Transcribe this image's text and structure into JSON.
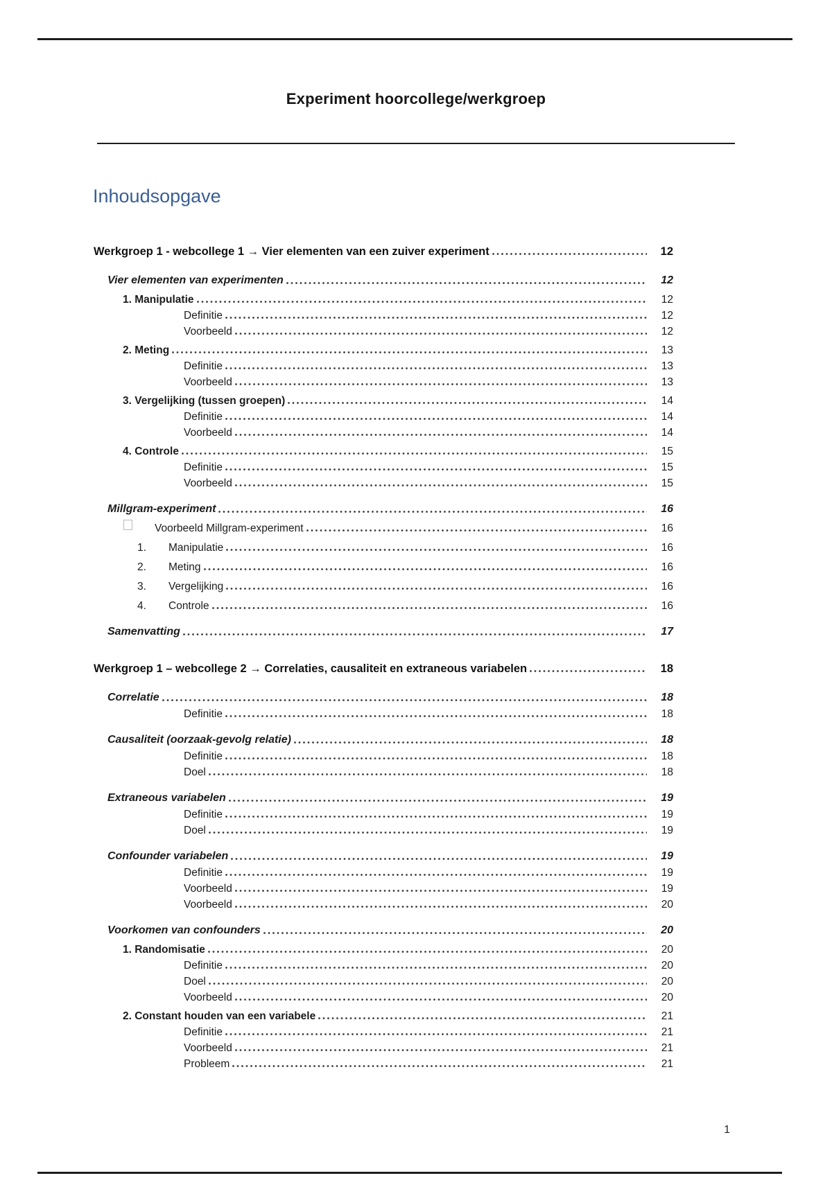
{
  "page": {
    "title": "Experiment hoorcollege/werkgroep",
    "toc_heading": "Inhoudsopgave",
    "footer_page_number": "1",
    "colors": {
      "heading_blue": "#3A5F94",
      "text": "#1b1b1b",
      "rule": "#1d1d1d"
    }
  },
  "toc": {
    "entries": [
      {
        "level": "h1",
        "label": "Werkgroep 1 - webcollege 1 → Vier elementen van een zuiver experiment",
        "page": "12"
      },
      {
        "level": "h2",
        "label": "Vier elementen van experimenten",
        "page": "12"
      },
      {
        "level": "h3",
        "label": "1. Manipulatie",
        "page": "12"
      },
      {
        "level": "h4",
        "label": "Definitie",
        "page": "12"
      },
      {
        "level": "h4",
        "label": "Voorbeeld",
        "page": "12"
      },
      {
        "level": "h3",
        "label": "2. Meting",
        "page": "13"
      },
      {
        "level": "h4",
        "label": "Definitie",
        "page": "13"
      },
      {
        "level": "h4",
        "label": "Voorbeeld",
        "page": "13"
      },
      {
        "level": "h3",
        "label": "3. Vergelijking (tussen groepen)",
        "page": "14"
      },
      {
        "level": "h4",
        "label": "Definitie",
        "page": "14"
      },
      {
        "level": "h4",
        "label": "Voorbeeld",
        "page": "14"
      },
      {
        "level": "h3",
        "label": "4. Controle",
        "page": "15"
      },
      {
        "level": "h4",
        "label": "Definitie",
        "page": "15"
      },
      {
        "level": "h4",
        "label": "Voorbeeld",
        "page": "15"
      },
      {
        "level": "h2",
        "label": "Millgram-experiment",
        "page": "16"
      },
      {
        "level": "bullet",
        "label": "Voorbeeld Millgram-experiment",
        "page": "16"
      },
      {
        "level": "num",
        "num": "1.",
        "label": "Manipulatie",
        "page": "16"
      },
      {
        "level": "num",
        "num": "2.",
        "label": "Meting",
        "page": "16"
      },
      {
        "level": "num",
        "num": "3.",
        "label": "Vergelijking",
        "page": "16"
      },
      {
        "level": "num",
        "num": "4.",
        "label": "Controle",
        "page": "16"
      },
      {
        "level": "h2",
        "label": "Samenvatting",
        "page": "17"
      },
      {
        "level": "h1",
        "label": "Werkgroep 1 – webcollege 2 → Correlaties, causaliteit en extraneous variabelen",
        "page": "18"
      },
      {
        "level": "h2",
        "label": "Correlatie",
        "page": "18"
      },
      {
        "level": "h4",
        "label": "Definitie",
        "page": "18"
      },
      {
        "level": "h2",
        "label": "Causaliteit (oorzaak-gevolg relatie)",
        "page": "18"
      },
      {
        "level": "h4",
        "label": "Definitie",
        "page": "18"
      },
      {
        "level": "h4",
        "label": "Doel",
        "page": "18"
      },
      {
        "level": "h2",
        "label": "Extraneous variabelen",
        "page": "19"
      },
      {
        "level": "h4",
        "label": "Definitie",
        "page": "19"
      },
      {
        "level": "h4",
        "label": "Doel",
        "page": "19"
      },
      {
        "level": "h2",
        "label": "Confounder variabelen",
        "page": "19"
      },
      {
        "level": "h4",
        "label": "Definitie",
        "page": "19"
      },
      {
        "level": "h4",
        "label": "Voorbeeld",
        "page": "19"
      },
      {
        "level": "h4",
        "label": "Voorbeeld",
        "page": "20"
      },
      {
        "level": "h2",
        "label": "Voorkomen van confounders",
        "page": "20"
      },
      {
        "level": "h3",
        "label": "1. Randomisatie",
        "page": "20"
      },
      {
        "level": "h4",
        "label": "Definitie",
        "page": "20"
      },
      {
        "level": "h4",
        "label": "Doel",
        "page": "20"
      },
      {
        "level": "h4",
        "label": "Voorbeeld",
        "page": "20"
      },
      {
        "level": "h3",
        "label": "2. Constant houden van een variabele",
        "page": "21"
      },
      {
        "level": "h4",
        "label": "Definitie",
        "page": "21"
      },
      {
        "level": "h4",
        "label": "Voorbeeld",
        "page": "21"
      },
      {
        "level": "h4",
        "label": "Probleem",
        "page": "21"
      }
    ]
  }
}
